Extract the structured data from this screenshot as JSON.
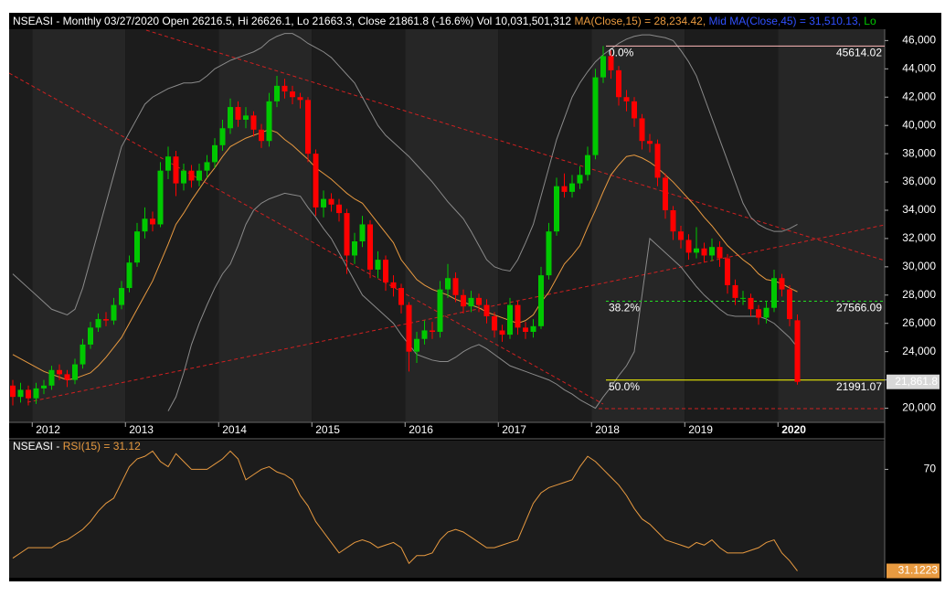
{
  "chart_data": [
    {
      "type": "candlestick",
      "title": "NSEASI - Monthly 03/27/2020 Open 26216.5, Hi 26626.1, Lo 21663.3, Close 21861.8 (-16.6%) Vol 10,031,501,312 ",
      "header_items": [
        {
          "text": "Mid MA(Close,45) = 31,510.13, ",
          "color": "#3050ff"
        },
        {
          "text": "Lo",
          "color": "#00c800"
        }
      ],
      "categories": [
        null,
        null,
        null,
        "2012",
        null,
        null,
        null,
        null,
        null,
        null,
        null,
        null,
        null,
        null,
        null,
        "2013",
        null,
        null,
        null,
        null,
        null,
        null,
        null,
        null,
        null,
        null,
        null,
        "2014",
        null,
        null,
        null,
        null,
        null,
        null,
        null,
        null,
        null,
        null,
        null,
        "2015",
        null,
        null,
        null,
        null,
        null,
        null,
        null,
        null,
        null,
        null,
        null,
        "2016",
        null,
        null,
        null,
        null,
        null,
        null,
        null,
        null,
        null,
        null,
        null,
        "2017",
        null,
        null,
        null,
        null,
        null,
        null,
        null,
        null,
        null,
        null,
        null,
        "2018",
        null,
        null,
        null,
        null,
        null,
        null,
        null,
        null,
        null,
        null,
        null,
        "2019",
        null,
        null,
        null,
        null,
        null,
        null,
        null,
        null,
        null,
        null,
        null,
        "2020",
        null,
        null
      ],
      "open": [
        21600,
        20800,
        21300,
        20700,
        21400,
        21600,
        22700,
        22400,
        22000,
        23100,
        24500,
        25700,
        26300,
        26200,
        27300,
        28500,
        30300,
        32500,
        33400,
        33000,
        36800,
        37800,
        35900,
        36800,
        36100,
        36800,
        37400,
        38600,
        39800,
        41300,
        40400,
        40700,
        39700,
        38900,
        41700,
        42800,
        42400,
        42000,
        41800,
        38000,
        34200,
        34800,
        34400,
        33800,
        30800,
        31800,
        33000,
        29800,
        30500,
        28900,
        28500,
        27300,
        24000,
        24900,
        25500,
        25400,
        28400,
        29200,
        28000,
        27200,
        27800,
        27300,
        26500,
        25500,
        25200,
        27300,
        25700,
        25400,
        25800,
        29400,
        32500,
        35700,
        35300,
        35900,
        36500,
        37900,
        43400,
        44900,
        43900,
        42000,
        41700,
        40500,
        38900,
        38700,
        36300,
        34000,
        32500,
        31900,
        31000,
        31300,
        30800,
        31400,
        30600,
        28700,
        27800,
        27800,
        27000,
        26400,
        27100,
        29200,
        28400,
        26216.5
      ],
      "high": [
        22000,
        21800,
        21600,
        21800,
        22000,
        23000,
        23100,
        22700,
        23500,
        24900,
        26100,
        26700,
        26800,
        27800,
        29000,
        30800,
        33100,
        34200,
        33900,
        37400,
        38500,
        38200,
        37300,
        37200,
        37300,
        37900,
        39100,
        40400,
        41900,
        41700,
        41300,
        41000,
        40100,
        42300,
        43500,
        43300,
        42800,
        42300,
        42000,
        38300,
        35400,
        35200,
        34800,
        34100,
        32400,
        33600,
        33300,
        31100,
        30800,
        29400,
        28800,
        27500,
        25400,
        26200,
        26100,
        29000,
        30200,
        29600,
        28400,
        28300,
        28100,
        27700,
        26800,
        25900,
        27800,
        27600,
        26100,
        26300,
        30000,
        33100,
        36300,
        36600,
        36500,
        37100,
        38500,
        44000,
        45614.02,
        45300,
        44200,
        42500,
        42000,
        40800,
        39400,
        39000,
        36600,
        34300,
        32900,
        32300,
        32800,
        31700,
        32000,
        31800,
        30900,
        29100,
        28300,
        28100,
        27300,
        27600,
        29800,
        29500,
        28700,
        26626.1
      ],
      "low": [
        20200,
        20400,
        20200,
        20300,
        21000,
        21300,
        22000,
        21500,
        21700,
        22800,
        24200,
        25400,
        25800,
        25900,
        27000,
        28200,
        30000,
        32000,
        32500,
        32800,
        36200,
        35000,
        35400,
        35600,
        35700,
        36300,
        37000,
        38200,
        39400,
        39900,
        39800,
        39200,
        38400,
        38500,
        41300,
        41900,
        41500,
        41200,
        37400,
        33600,
        33500,
        33900,
        33200,
        29500,
        30200,
        31400,
        29200,
        29200,
        28300,
        27900,
        26700,
        22600,
        23200,
        24500,
        24900,
        25000,
        27800,
        27500,
        26700,
        26800,
        26800,
        26000,
        25000,
        24700,
        24900,
        25200,
        24900,
        25000,
        25600,
        29100,
        32200,
        34900,
        34900,
        35500,
        36100,
        37600,
        43000,
        43300,
        41400,
        41000,
        39900,
        38300,
        38100,
        35700,
        33400,
        31900,
        31300,
        30500,
        30600,
        30300,
        30400,
        30000,
        28100,
        27300,
        27300,
        26500,
        25900,
        26000,
        26800,
        27900,
        25800,
        21663.3
      ],
      "close": [
        20800,
        21300,
        20700,
        21400,
        21600,
        22700,
        22400,
        22000,
        23100,
        24500,
        25700,
        26300,
        26200,
        27300,
        28500,
        30300,
        32500,
        33400,
        33000,
        36800,
        37800,
        35900,
        36800,
        36100,
        36800,
        37400,
        38600,
        39800,
        41300,
        40400,
        40700,
        39700,
        38900,
        41700,
        42800,
        42400,
        42000,
        41800,
        38000,
        34200,
        34800,
        34400,
        33800,
        30800,
        31800,
        33000,
        29800,
        30500,
        28900,
        28500,
        27300,
        24000,
        24900,
        25500,
        25400,
        28400,
        29200,
        28000,
        27200,
        27800,
        27300,
        26500,
        25500,
        25200,
        27300,
        25700,
        25400,
        25800,
        29400,
        32500,
        35700,
        35300,
        35900,
        36500,
        37900,
        43400,
        44900,
        43900,
        42000,
        41700,
        40500,
        38900,
        38700,
        36300,
        34000,
        32500,
        31900,
        31000,
        31300,
        30800,
        31400,
        30600,
        28700,
        27800,
        27800,
        27000,
        26400,
        27100,
        29200,
        28400,
        26300,
        21861.8
      ],
      "up_color": "#00c800",
      "down_color": "#ff0000",
      "lines": [
        {
          "label": "MA(Close,15) = 28,234.42, ",
          "color": "#e89a40",
          "values": [
            23800,
            23500,
            23200,
            22900,
            22600,
            22400,
            22200,
            22000,
            22100,
            22300,
            22500,
            23000,
            23600,
            24300,
            25000,
            26000,
            27000,
            28000,
            29000,
            30300,
            31600,
            33000,
            33800,
            34700,
            35500,
            36300,
            37000,
            37800,
            38500,
            38800,
            39100,
            39300,
            39500,
            39700,
            39500,
            39000,
            38600,
            38100,
            37600,
            37000,
            36600,
            36200,
            35700,
            35200,
            34800,
            34500,
            33800,
            33100,
            32400,
            31700,
            30500,
            29800,
            29100,
            28700,
            28400,
            28200,
            28000,
            27700,
            27500,
            27300,
            27100,
            26800,
            26600,
            26400,
            26200,
            26000,
            26200,
            26600,
            27500,
            28200,
            29200,
            30200,
            30800,
            31500,
            32800,
            34000,
            35300,
            36500,
            37200,
            37800,
            37900,
            37700,
            37400,
            37000,
            36500,
            36000,
            35400,
            34800,
            34200,
            33500,
            32900,
            32200,
            31500,
            31000,
            30500,
            30100,
            29500,
            29100,
            29000,
            28800,
            28500,
            28234.42
          ]
        }
      ],
      "bands": {
        "color": "#8a8a8a",
        "upper": [
          29500,
          29000,
          28500,
          28000,
          27500,
          27000,
          26800,
          26600,
          27000,
          28500,
          30500,
          32500,
          34500,
          36500,
          38500,
          39500,
          40500,
          41500,
          42000,
          42300,
          42600,
          42800,
          43000,
          43000,
          43100,
          43500,
          44000,
          44300,
          44600,
          44800,
          45000,
          45200,
          45500,
          46000,
          46300,
          46500,
          46500,
          46200,
          45800,
          45500,
          45200,
          44800,
          44200,
          43600,
          43000,
          42000,
          41000,
          40000,
          39300,
          38800,
          38300,
          37800,
          37200,
          36600,
          36000,
          35300,
          34600,
          34000,
          33400,
          32500,
          31500,
          30500,
          30000,
          29800,
          29700,
          30500,
          31700,
          33000,
          35000,
          37000,
          39000,
          40500,
          42000,
          43000,
          43800,
          44500,
          45000,
          45400,
          45800,
          46100,
          46300,
          46400,
          46400,
          46300,
          46200,
          46000,
          45300,
          44500,
          43500,
          42000,
          40500,
          39000,
          37500,
          36000,
          34500,
          33500,
          33000,
          32700,
          32500,
          32500,
          32700,
          33000
        ],
        "lower": [
          null,
          null,
          null,
          null,
          null,
          null,
          null,
          null,
          null,
          null,
          null,
          null,
          null,
          null,
          null,
          null,
          null,
          null,
          null,
          null,
          19800,
          20800,
          22500,
          24500,
          26000,
          27300,
          28500,
          29500,
          30200,
          31500,
          33000,
          34000,
          34500,
          34800,
          35000,
          35200,
          35100,
          35000,
          34200,
          33500,
          32700,
          32000,
          31000,
          30000,
          29000,
          28000,
          27500,
          27000,
          26500,
          26000,
          25200,
          24500,
          23800,
          23600,
          23400,
          23300,
          23300,
          23600,
          24000,
          24300,
          24500,
          24200,
          23800,
          23400,
          23000,
          22800,
          22600,
          22400,
          22200,
          22000,
          21700,
          21300,
          21000,
          20600,
          20300,
          20000,
          20800,
          21500,
          22300,
          23000,
          24000,
          28000,
          32000,
          31500,
          31000,
          30500,
          30000,
          29300,
          28600,
          28000,
          27500,
          27000,
          26600,
          26500,
          26500,
          26500,
          26500,
          26300,
          26000,
          25500,
          25000,
          24300
        ]
      },
      "fib_levels": [
        {
          "label": "0.0%",
          "value": 45614.02,
          "color": "#ffb8b8"
        },
        {
          "label": "38.2%",
          "value": 27566.09,
          "color": "#22dd22"
        },
        {
          "label": "50.0%",
          "value": 21991.07,
          "color": "#ffff00"
        }
      ],
      "last_label": "21,861.8",
      "ylim": [
        19000,
        46800
      ],
      "yticks": [
        {
          "value": 20000,
          "label": "20,000"
        },
        {
          "value": 22000,
          "label": "22,000"
        },
        {
          "value": 24000,
          "label": "24,000"
        },
        {
          "value": 26000,
          "label": "26,000"
        },
        {
          "value": 28000,
          "label": "28,000"
        },
        {
          "value": 30000,
          "label": "30,000"
        },
        {
          "value": 32000,
          "label": "32,000"
        },
        {
          "value": 34000,
          "label": "34,000"
        },
        {
          "value": 36000,
          "label": "36,000"
        },
        {
          "value": 38000,
          "label": "38,000"
        },
        {
          "value": 40000,
          "label": "40,000"
        },
        {
          "value": 42000,
          "label": "42,000"
        },
        {
          "value": 44000,
          "label": "44,000"
        },
        {
          "value": 46000,
          "label": "46,000"
        }
      ],
      "grid": false
    },
    {
      "type": "line",
      "title": "NSEASI - ",
      "series": [
        {
          "name": "RSI(15) = 31.12",
          "color": "#e89a40",
          "values": [
            36,
            38,
            40,
            40,
            40,
            40,
            42,
            43,
            45,
            47,
            50,
            54,
            57,
            59,
            65,
            71,
            74,
            75,
            77,
            73,
            71,
            76,
            73,
            70,
            70,
            70,
            72,
            74,
            77,
            74,
            66,
            68,
            70,
            71,
            69,
            68,
            66,
            60,
            56,
            50,
            46,
            42,
            38,
            40,
            42,
            43,
            42,
            40,
            41,
            42,
            40,
            34,
            37,
            37,
            38,
            43,
            46,
            47,
            46,
            44,
            42,
            40,
            40,
            41,
            42,
            43,
            50,
            57,
            61,
            63,
            64,
            65,
            66,
            71,
            75,
            73,
            70,
            67,
            64,
            60,
            55,
            51,
            49,
            46,
            43,
            42,
            41,
            40,
            42,
            41,
            43,
            40,
            38,
            38,
            38,
            39,
            40,
            42,
            43,
            38,
            35,
            31.12
          ]
        }
      ],
      "last_label": "31.1223",
      "ylim": [
        28.5,
        81
      ],
      "yticks": [
        70
      ],
      "grid": false
    }
  ]
}
